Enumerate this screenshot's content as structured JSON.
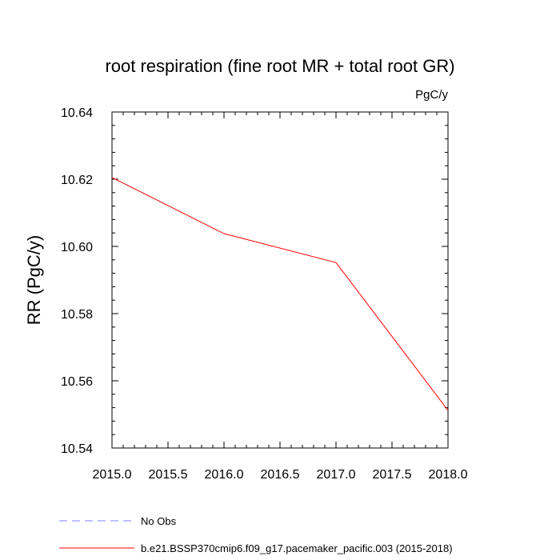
{
  "chart_data": {
    "type": "line",
    "title": "root respiration (fine root MR + total root GR)",
    "units_label": "PgC/y",
    "xlabel": "",
    "ylabel": "RR  (PgC/y)",
    "xlim": [
      2015.0,
      2018.0
    ],
    "ylim": [
      10.54,
      10.64
    ],
    "x_ticks": [
      "2015.0",
      "2015.5",
      "2016.0",
      "2016.5",
      "2017.0",
      "2017.5",
      "2018.0"
    ],
    "y_ticks": [
      "10.54",
      "10.56",
      "10.58",
      "10.60",
      "10.62",
      "10.64"
    ],
    "grid": false,
    "legend_position": "bottom-left",
    "series": [
      {
        "name": "No Obs",
        "color": "#8080ff",
        "dash": "dashed",
        "x": [],
        "y": []
      },
      {
        "name": "b.e21.BSSP370cmip6.f09_g17.pacemaker_pacific.003 (2015-2018)",
        "color": "#ff0000",
        "dash": "solid",
        "x": [
          2015.0,
          2016.0,
          2017.0,
          2018.0
        ],
        "y": [
          10.6205,
          10.6038,
          10.5952,
          10.5512
        ]
      }
    ]
  }
}
